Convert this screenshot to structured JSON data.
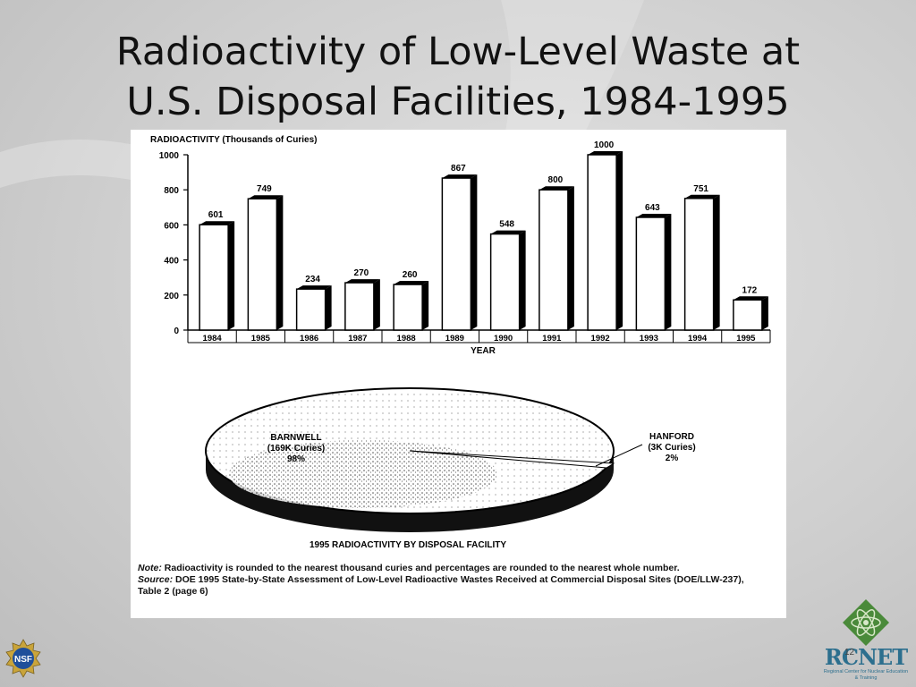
{
  "slide": {
    "title_line1": "Radioactivity of Low-Level Waste at",
    "title_line2": "U.S. Disposal Facilities, 1984-1995",
    "slide_number": "12"
  },
  "chart_data": [
    {
      "type": "bar",
      "ylabel": "RADIOACTIVITY (Thousands of Curies)",
      "xlabel": "YEAR",
      "categories": [
        "1984",
        "1985",
        "1986",
        "1987",
        "1988",
        "1989",
        "1990",
        "1991",
        "1992",
        "1993",
        "1994",
        "1995"
      ],
      "values": [
        601,
        749,
        234,
        270,
        260,
        867,
        548,
        800,
        1000,
        643,
        751,
        172
      ],
      "ylim": [
        0,
        1000
      ],
      "yticks": [
        0,
        200,
        400,
        600,
        800,
        1000
      ],
      "grid": false
    },
    {
      "type": "pie",
      "title": "1995 RADIOACTIVITY BY DISPOSAL FACILITY",
      "slices": [
        {
          "name": "BARNWELL",
          "detail": "(169K Curies)",
          "value": 98,
          "label": "98%"
        },
        {
          "name": "HANFORD",
          "detail": "(3K Curies)",
          "value": 2,
          "label": "2%"
        }
      ]
    }
  ],
  "footnote": {
    "note_label": "Note:",
    "note_text": "Radioactivity is rounded to the nearest thousand curies and percentages are rounded to the nearest whole number.",
    "source_label": "Source:",
    "source_text": "DOE 1995 State-by-State Assessment of Low-Level Radioactive Wastes Received at Commercial Disposal Sites (DOE/LLW-237), Table 2 (page 6)"
  },
  "logos": {
    "nsf": "NSF",
    "rcnet": "RCNET",
    "rcnet_sub": "Regional Center for Nuclear Education & Training"
  },
  "colors": {
    "bar_fill": "#ffffff",
    "bar_shadow": "#000000",
    "rcnet_blue": "#2c6f8e",
    "rcnet_green": "#4a8a3a"
  }
}
